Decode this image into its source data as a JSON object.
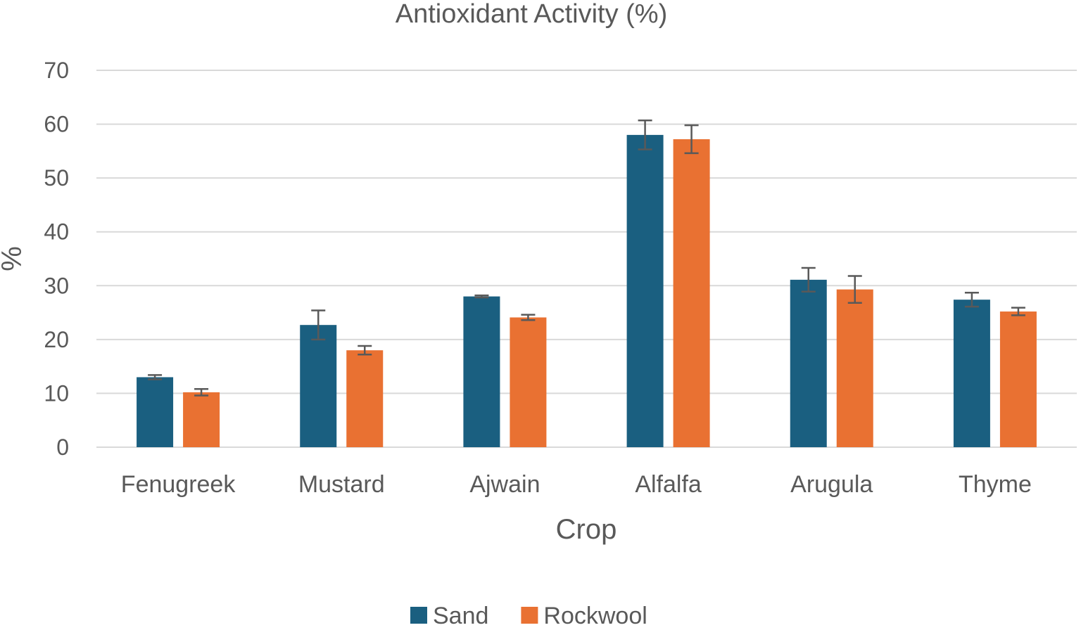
{
  "chart_data": {
    "type": "bar",
    "title": "Antioxidant Activity (%)",
    "xlabel": "Crop",
    "ylabel": "%",
    "ylim": [
      0,
      70
    ],
    "yticks": [
      0,
      10,
      20,
      30,
      40,
      50,
      60,
      70
    ],
    "grid": true,
    "legend_position": "bottom",
    "categories": [
      "Fenugreek",
      "Mustard",
      "Ajwain",
      "Alfalfa",
      "Arugula",
      "Thyme"
    ],
    "series": [
      {
        "name": "Sand",
        "color": "#1a5f80",
        "values": [
          13.0,
          22.7,
          28.0,
          58.0,
          31.1,
          27.4
        ],
        "errors": [
          0.4,
          2.7,
          0.2,
          2.7,
          2.2,
          1.3
        ]
      },
      {
        "name": "Rockwool",
        "color": "#e97132",
        "values": [
          10.2,
          18.0,
          24.1,
          57.2,
          29.3,
          25.2
        ],
        "errors": [
          0.6,
          0.8,
          0.5,
          2.6,
          2.5,
          0.7
        ]
      }
    ]
  }
}
